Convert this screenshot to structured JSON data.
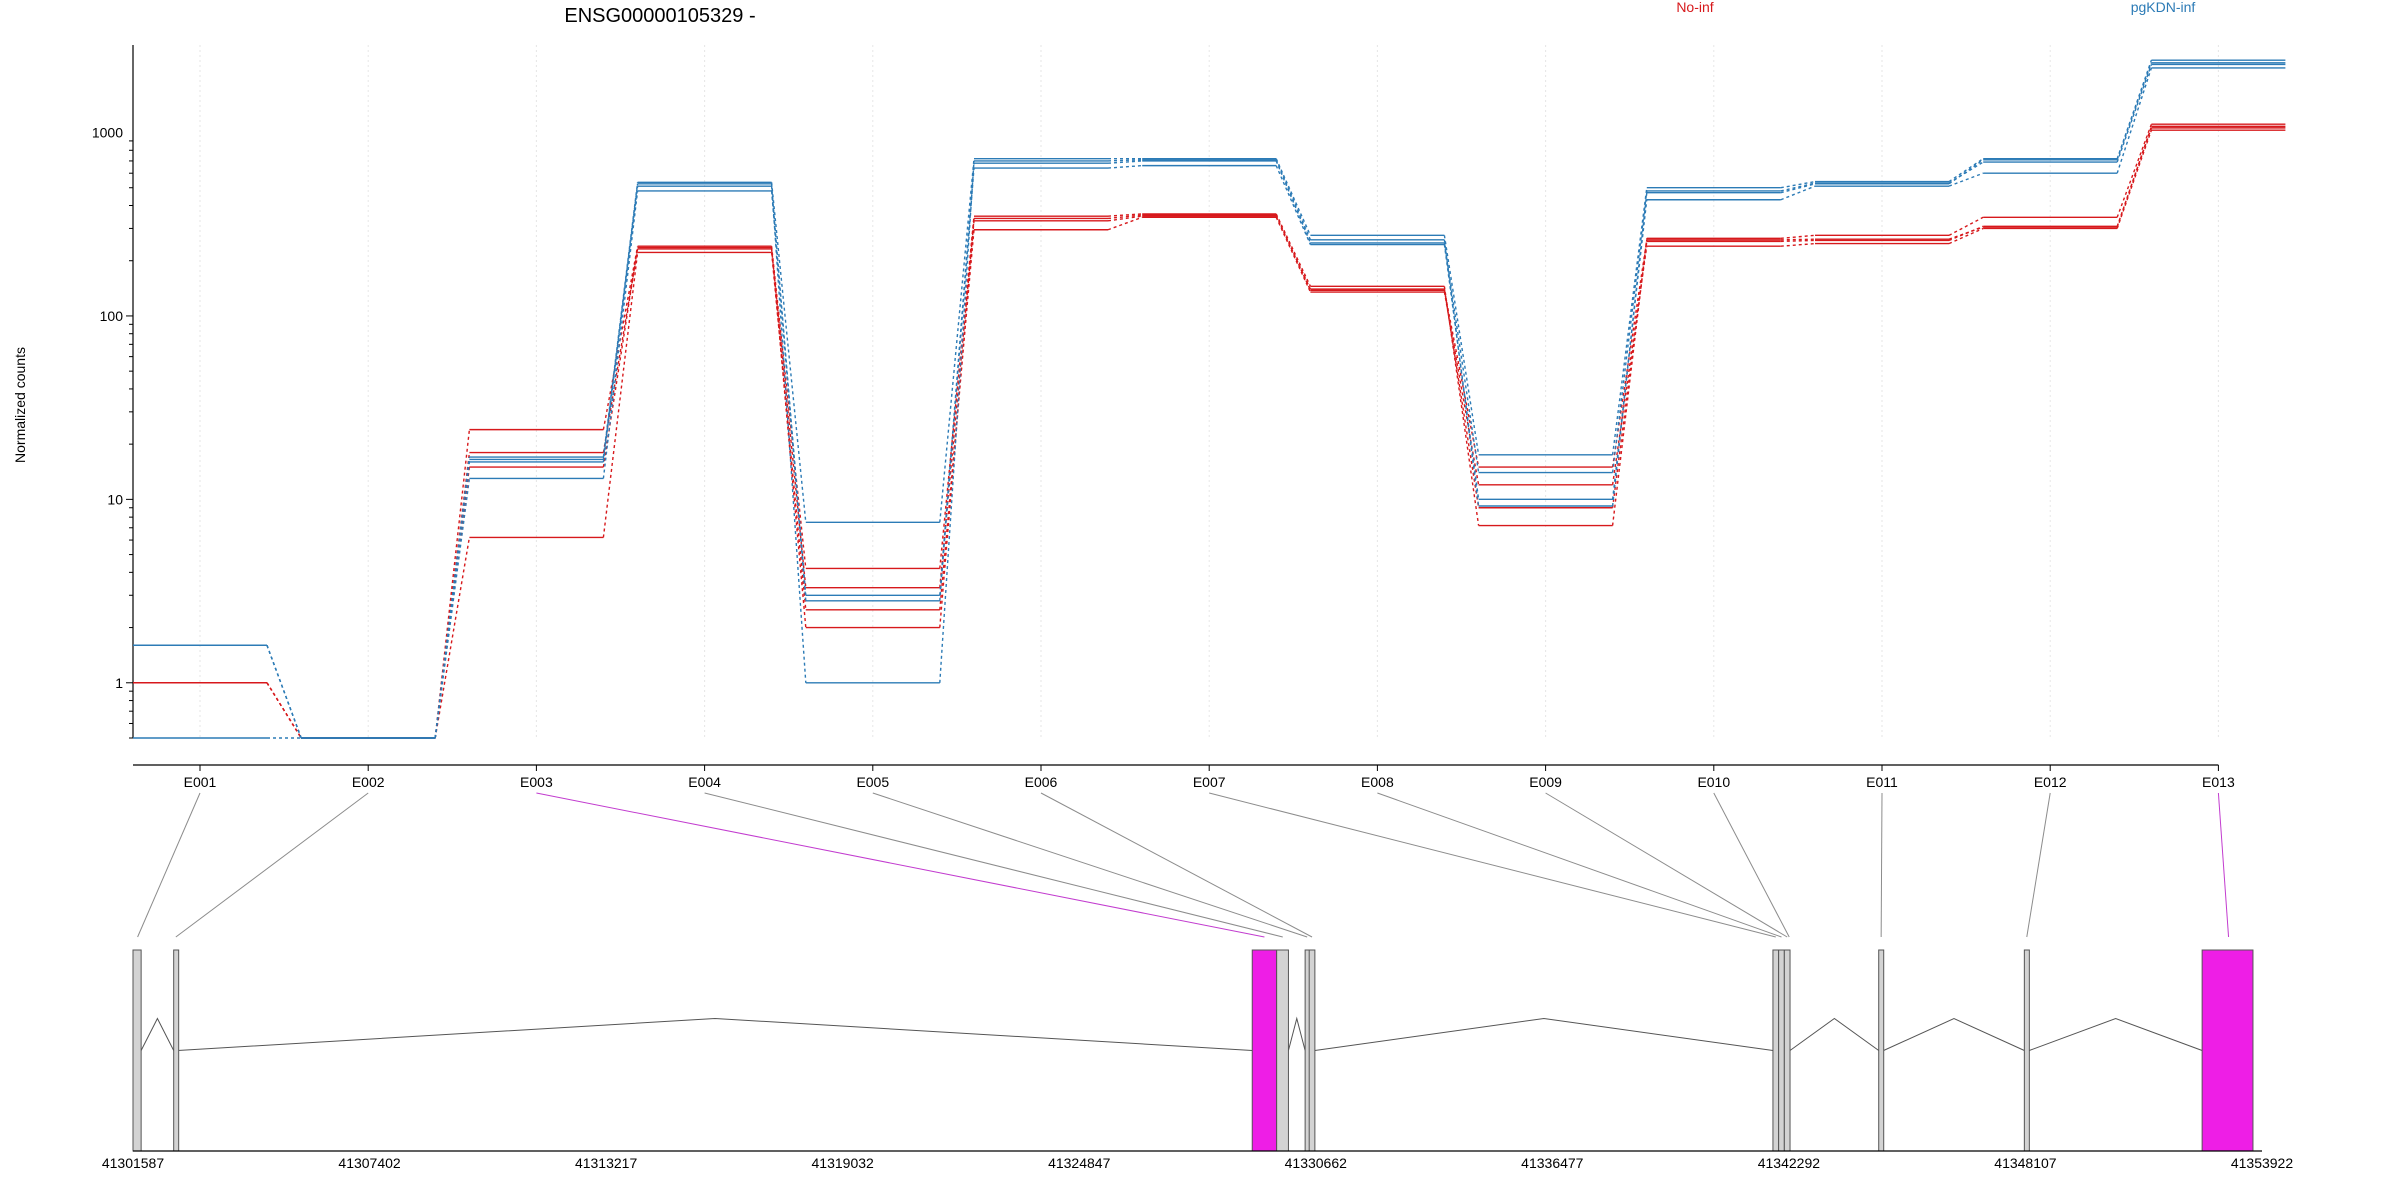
{
  "chart_data": {
    "type": "line",
    "title": "ENSG00000105329 -",
    "ylabel": "Normalized counts",
    "xlabel": "",
    "yscale": "log",
    "ylim": [
      0.5,
      3000
    ],
    "yticks": [
      1,
      10,
      100,
      1000
    ],
    "ytick_labels": [
      "1",
      "10",
      "100",
      "1000"
    ],
    "categories": [
      "E001",
      "E002",
      "E003",
      "E004",
      "E005",
      "E006",
      "E007",
      "E008",
      "E009",
      "E010",
      "E011",
      "E012",
      "E013"
    ],
    "legend": [
      {
        "label": "No-inf",
        "color": "#d7191c"
      },
      {
        "label": "pgKDN-inf",
        "color": "#2c7bb6"
      }
    ],
    "series": [
      {
        "group": "No-inf",
        "color": "#d7191c",
        "values": [
          1.0,
          0.5,
          24,
          240,
          4.2,
          350,
          360,
          145,
          7.2,
          265,
          275,
          345,
          1110
        ]
      },
      {
        "group": "No-inf",
        "color": "#d7191c",
        "values": [
          1.0,
          0.5,
          18,
          232,
          3.3,
          330,
          350,
          140,
          9.0,
          255,
          258,
          308,
          1060
        ]
      },
      {
        "group": "No-inf",
        "color": "#d7191c",
        "values": [
          1.0,
          0.5,
          6.2,
          222,
          2.5,
          295,
          345,
          135,
          12,
          240,
          248,
          300,
          1030
        ]
      },
      {
        "group": "No-inf",
        "color": "#d7191c",
        "values": [
          1.0,
          0.5,
          15,
          236,
          2.0,
          340,
          355,
          138,
          15,
          260,
          262,
          305,
          1080
        ]
      },
      {
        "group": "pgKDN-inf",
        "color": "#2c7bb6",
        "values": [
          1.6,
          0.5,
          17,
          535,
          7.5,
          720,
          720,
          275,
          17.5,
          500,
          540,
          720,
          2480
        ]
      },
      {
        "group": "pgKDN-inf",
        "color": "#2c7bb6",
        "values": [
          1.6,
          0.5,
          16,
          510,
          3.0,
          680,
          700,
          250,
          14,
          480,
          530,
          690,
          2350
        ]
      },
      {
        "group": "pgKDN-inf",
        "color": "#2c7bb6",
        "values": [
          0.5,
          0.5,
          13,
          480,
          2.8,
          640,
          660,
          245,
          10,
          430,
          510,
          600,
          2250
        ]
      },
      {
        "group": "pgKDN-inf",
        "color": "#2c7bb6",
        "values": [
          1.6,
          0.5,
          16.5,
          525,
          1.0,
          700,
          710,
          260,
          9.2,
          470,
          525,
          710,
          2400
        ]
      }
    ],
    "genomic_ticks": [
      "41301587",
      "41307402",
      "41313217",
      "41319032",
      "41324847",
      "41330662",
      "41336477",
      "41342292",
      "41348107",
      "41353922"
    ],
    "genomic_range": [
      41301587,
      41353922
    ],
    "exons": [
      {
        "start": 41301587,
        "end": 41301787,
        "highlight": false
      },
      {
        "start": 41302587,
        "end": 41302687,
        "highlight": false
      },
      {
        "start": 41329100,
        "end": 41329700,
        "highlight": true
      },
      {
        "start": 41329700,
        "end": 41329990,
        "highlight": false
      },
      {
        "start": 41330400,
        "end": 41330500,
        "highlight": false
      },
      {
        "start": 41330500,
        "end": 41330640,
        "highlight": false
      },
      {
        "start": 41341900,
        "end": 41342040,
        "highlight": false
      },
      {
        "start": 41342040,
        "end": 41342180,
        "highlight": false
      },
      {
        "start": 41342180,
        "end": 41342320,
        "highlight": false
      },
      {
        "start": 41344500,
        "end": 41344620,
        "highlight": false
      },
      {
        "start": 41348080,
        "end": 41348200,
        "highlight": false
      },
      {
        "start": 41352450,
        "end": 41353700,
        "highlight": true
      }
    ],
    "exon_links": [
      {
        "exon": "E001",
        "pos": 41301700,
        "highlight": false
      },
      {
        "exon": "E002",
        "pos": 41302640,
        "highlight": false
      },
      {
        "exon": "E003",
        "pos": 41329400,
        "highlight": true
      },
      {
        "exon": "E004",
        "pos": 41329850,
        "highlight": false
      },
      {
        "exon": "E005",
        "pos": 41330450,
        "highlight": false
      },
      {
        "exon": "E006",
        "pos": 41330570,
        "highlight": false
      },
      {
        "exon": "E007",
        "pos": 41341970,
        "highlight": false
      },
      {
        "exon": "E008",
        "pos": 41342110,
        "highlight": false
      },
      {
        "exon": "E009",
        "pos": 41342250,
        "highlight": false
      },
      {
        "exon": "E010",
        "pos": 41342300,
        "highlight": false
      },
      {
        "exon": "E011",
        "pos": 41344560,
        "highlight": false
      },
      {
        "exon": "E012",
        "pos": 41348140,
        "highlight": false
      },
      {
        "exon": "E013",
        "pos": 41353100,
        "highlight": true
      }
    ],
    "highlight_color": "#ee1ee6",
    "exon_fill": "#d3d3d3"
  }
}
